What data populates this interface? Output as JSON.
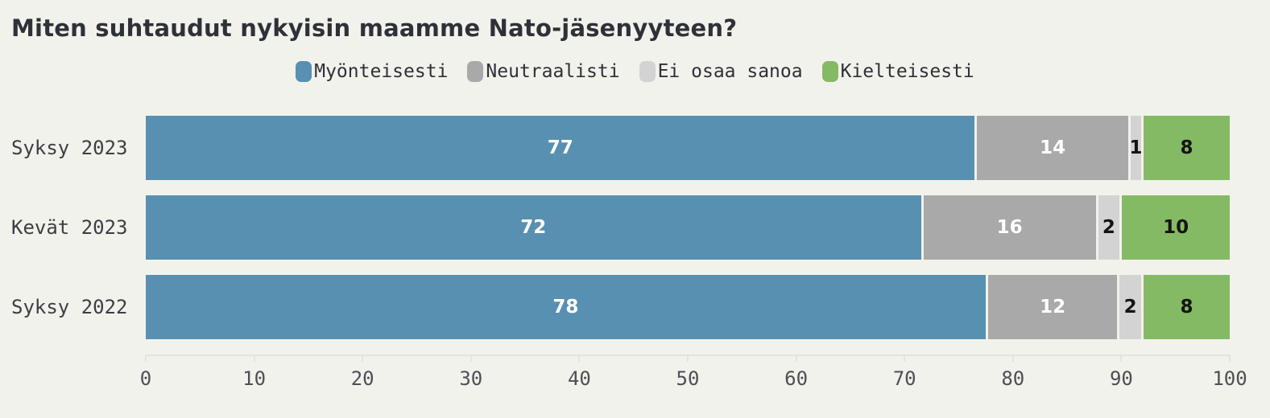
{
  "title": "Miten suhtaudut nykyisin maamme Nato-jäsenyyteen?",
  "colors": {
    "background": "#f2f2ec",
    "title_text": "#2e3138",
    "axis_line": "#e3e4db",
    "axis_tick_text": "#4d4f54",
    "row_label_text": "#3c3e43"
  },
  "chart_data": {
    "type": "bar",
    "stacked": true,
    "orientation": "horizontal",
    "title": "Miten suhtaudut nykyisin maamme Nato-jäsenyyteen?",
    "categories": [
      "Syksy 2023",
      "Kevät 2023",
      "Syksy 2022"
    ],
    "series": [
      {
        "name": "Myönteisesti",
        "color": "#5890b1",
        "label_color": "#ffffff",
        "values": [
          77,
          72,
          78
        ]
      },
      {
        "name": "Neutraalisti",
        "color": "#a9a9a9",
        "label_color": "#ffffff",
        "values": [
          14,
          16,
          12
        ]
      },
      {
        "name": "Ei osaa sanoa",
        "color": "#d3d3d3",
        "label_color": "#141414",
        "values": [
          1,
          2,
          2
        ]
      },
      {
        "name": "Kielteisesti",
        "color": "#85ba64",
        "label_color": "#141414",
        "values": [
          8,
          10,
          8
        ]
      }
    ],
    "xlim": [
      0,
      100
    ],
    "xticks": [
      0,
      10,
      20,
      30,
      40,
      50,
      60,
      70,
      80,
      90,
      100
    ],
    "xlabel": "",
    "ylabel": "",
    "grid": false,
    "legend_position": "top"
  }
}
